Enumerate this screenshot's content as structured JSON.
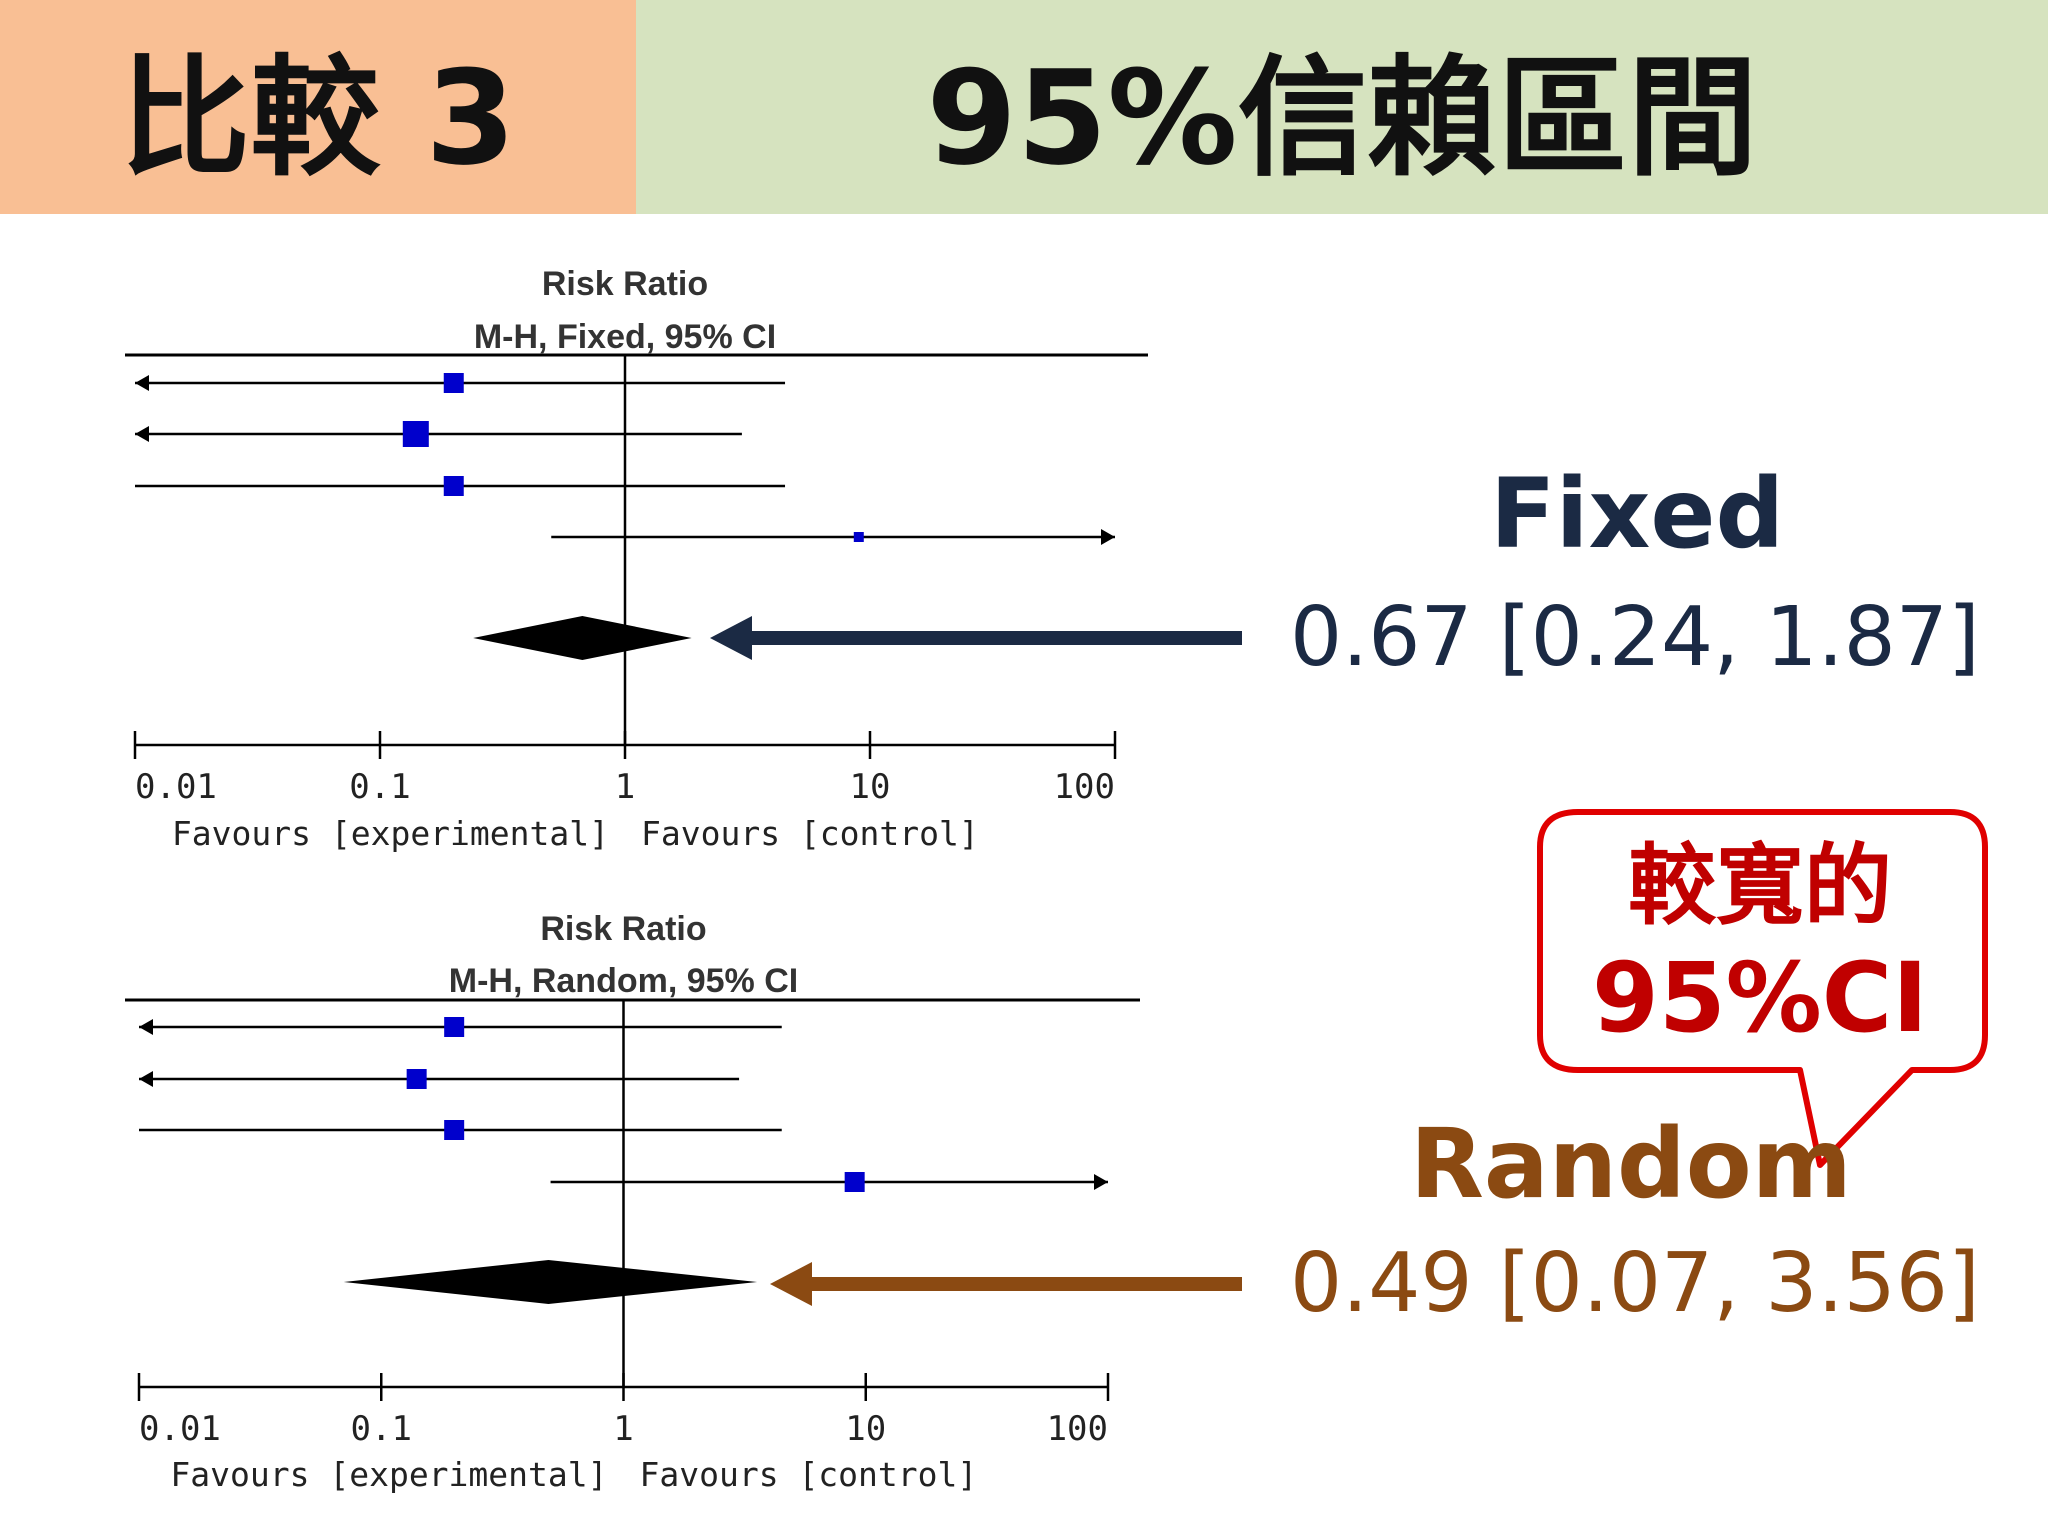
{
  "header": {
    "left_title": "比較 3",
    "right_title": "95%信賴區間"
  },
  "chart_data": [
    {
      "type": "forest",
      "title": "Risk Ratio",
      "subtitle": "M-H, Fixed, 95% CI",
      "xscale": "log",
      "xlim": [
        0.01,
        100
      ],
      "ticks": [
        "0.01",
        "0.1",
        "1",
        "10",
        "100"
      ],
      "tick_values": [
        0.01,
        0.1,
        1,
        10,
        100
      ],
      "xlabel_left": "Favours [experimental]",
      "xlabel_right": "Favours [control]",
      "studies": [
        {
          "est": 0.2,
          "lo": 0.01,
          "hi": 4.5,
          "lo_arrow": true,
          "hi_arrow": false,
          "weight": "medium"
        },
        {
          "est": 0.14,
          "lo": 0.01,
          "hi": 3.0,
          "lo_arrow": true,
          "hi_arrow": false,
          "weight": "large"
        },
        {
          "est": 0.2,
          "lo": 0.01,
          "hi": 4.5,
          "lo_arrow": false,
          "hi_arrow": false,
          "weight": "medium"
        },
        {
          "est": 9.0,
          "lo": 0.5,
          "hi": 100,
          "lo_arrow": false,
          "hi_arrow": true,
          "weight": "tiny"
        }
      ],
      "pooled": {
        "est": 0.67,
        "lo": 0.24,
        "hi": 1.87
      },
      "marker_color": "#0000cc"
    },
    {
      "type": "forest",
      "title": "Risk Ratio",
      "subtitle": "M-H, Random, 95% CI",
      "xscale": "log",
      "xlim": [
        0.01,
        100
      ],
      "ticks": [
        "0.01",
        "0.1",
        "1",
        "10",
        "100"
      ],
      "tick_values": [
        0.01,
        0.1,
        1,
        10,
        100
      ],
      "xlabel_left": "Favours [experimental]",
      "xlabel_right": "Favours [control]",
      "studies": [
        {
          "est": 0.2,
          "lo": 0.01,
          "hi": 4.5,
          "lo_arrow": true,
          "hi_arrow": false,
          "weight": "medium"
        },
        {
          "est": 0.14,
          "lo": 0.01,
          "hi": 3.0,
          "lo_arrow": true,
          "hi_arrow": false,
          "weight": "medium"
        },
        {
          "est": 0.2,
          "lo": 0.01,
          "hi": 4.5,
          "lo_arrow": false,
          "hi_arrow": false,
          "weight": "medium"
        },
        {
          "est": 9.0,
          "lo": 0.5,
          "hi": 100,
          "lo_arrow": false,
          "hi_arrow": true,
          "weight": "medium"
        }
      ],
      "pooled": {
        "est": 0.49,
        "lo": 0.07,
        "hi": 3.56
      },
      "marker_color": "#0000cc"
    }
  ],
  "annotations": {
    "fixed_name": "Fixed",
    "fixed_value": "0.67 [0.24, 1.87]",
    "fixed_color": "#1b2a44",
    "random_name": "Random",
    "random_value": "0.49 [0.07, 3.56]",
    "random_color": "#8b4a12",
    "bubble_line1": "較寬的",
    "bubble_line2": "95%CI",
    "bubble_color": "#e00000"
  }
}
